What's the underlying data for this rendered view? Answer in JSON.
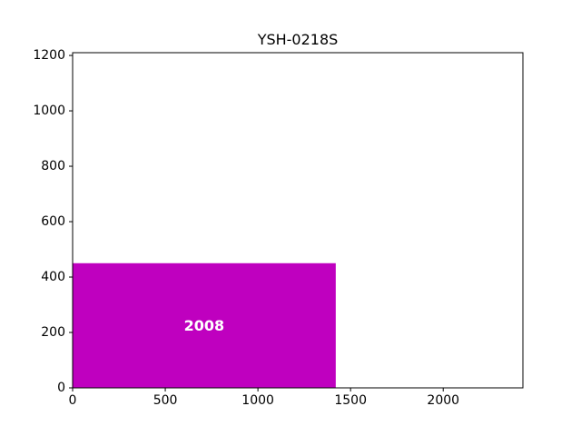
{
  "chart_data": {
    "type": "treemap",
    "title": "YSH-0218S",
    "xlim": [
      0,
      2430
    ],
    "ylim": [
      0,
      1210
    ],
    "x_ticks": [
      0,
      500,
      1000,
      1500,
      2000
    ],
    "y_ticks": [
      0,
      200,
      400,
      600,
      800,
      1000,
      1200
    ],
    "rects": [
      {
        "label": "2008",
        "x": 0,
        "y": 0,
        "width": 1420,
        "height": 450,
        "color": "#bf00bf"
      }
    ]
  }
}
